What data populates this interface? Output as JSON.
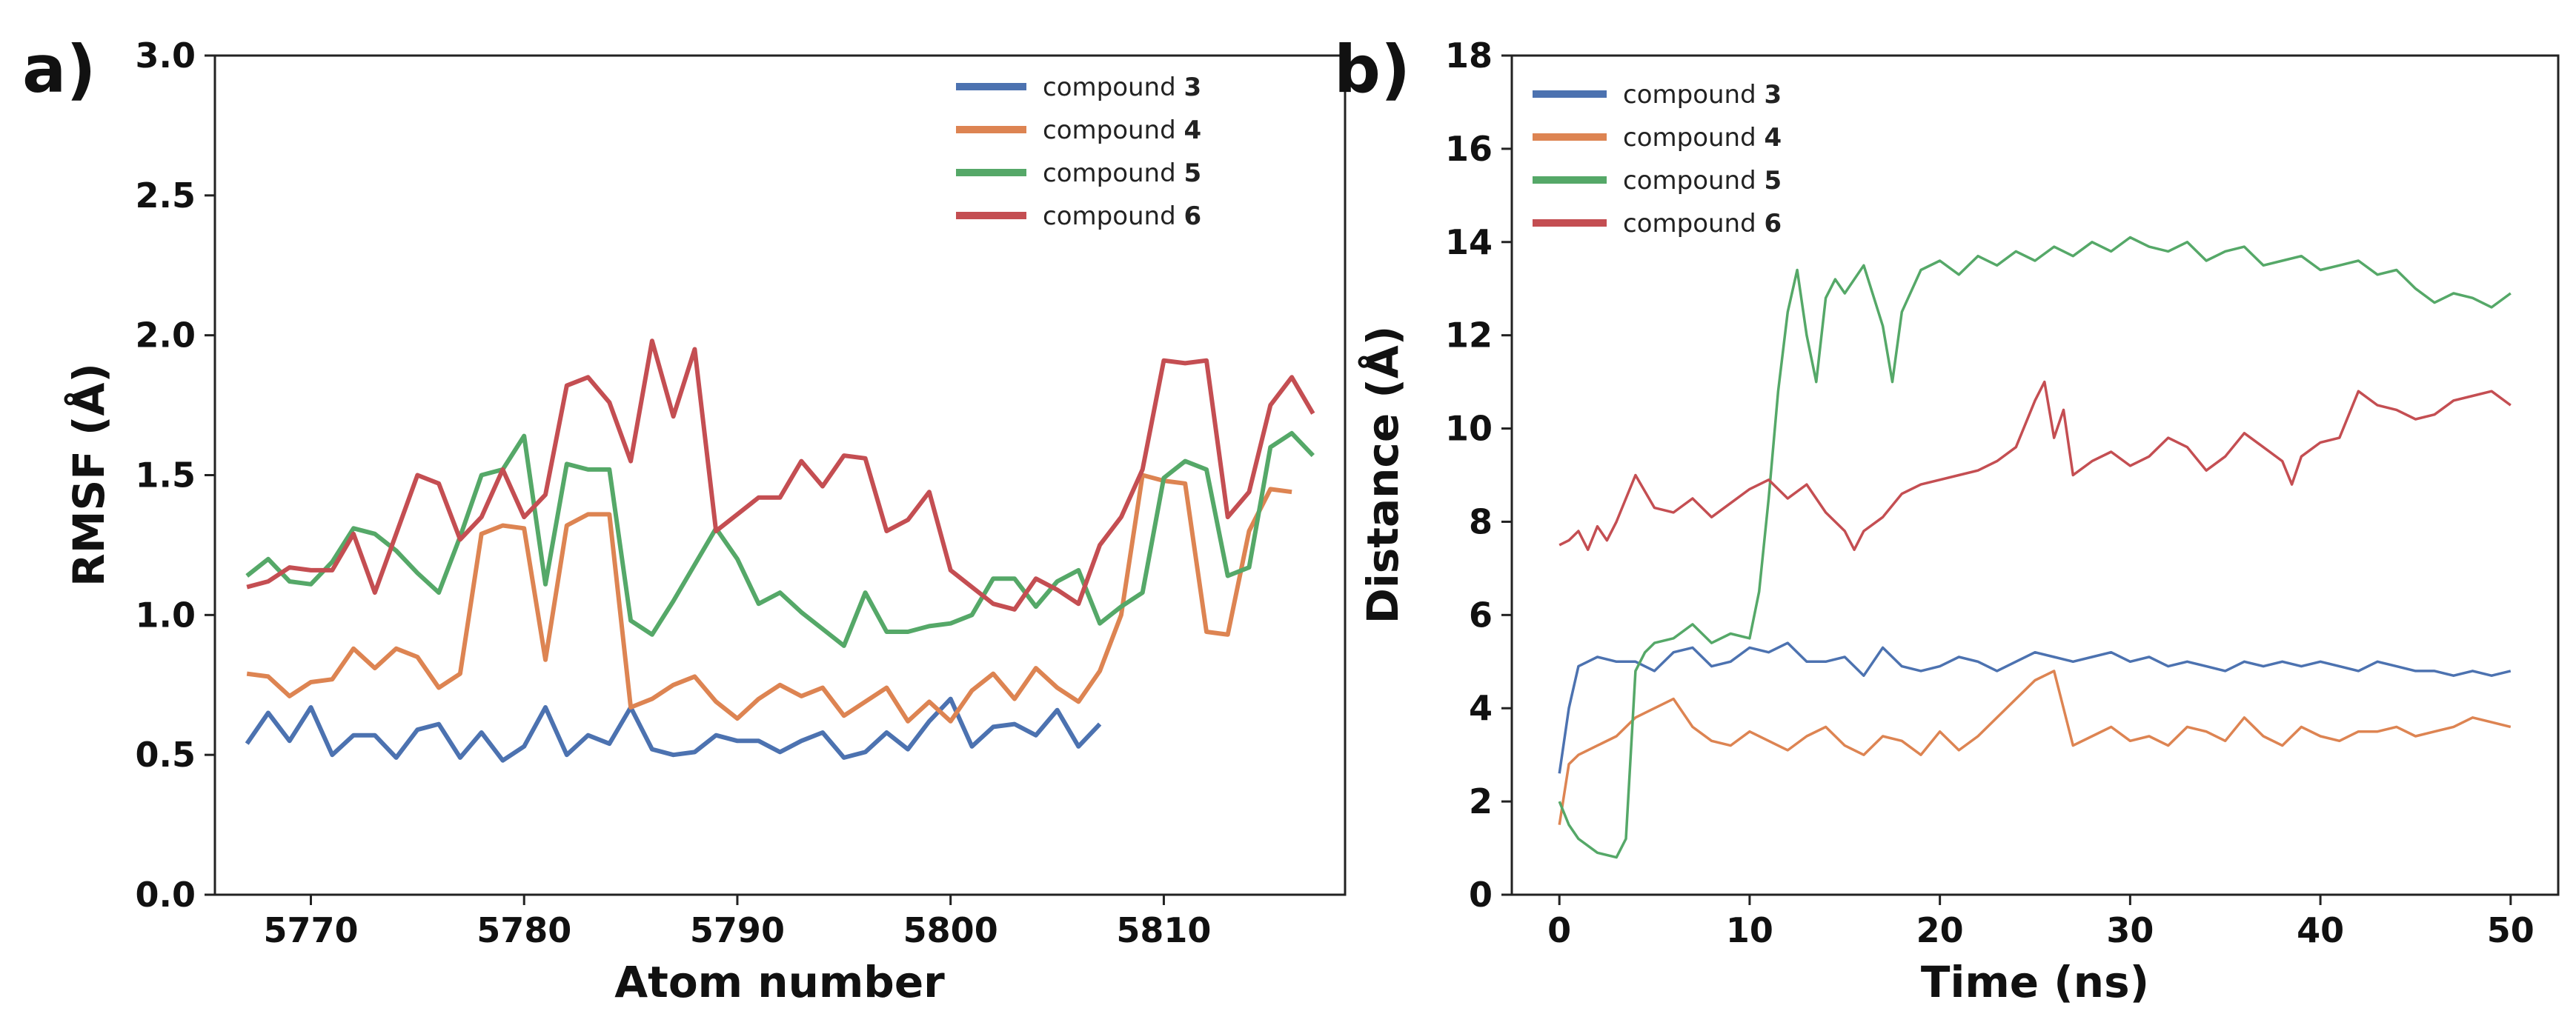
{
  "chart_data": [
    {
      "panel_label": "a)",
      "type": "line",
      "xlabel": "Atom number",
      "ylabel": "RMSF (Å)",
      "xlim": [
        5765.5,
        5818.5
      ],
      "ylim": [
        0.0,
        3.0
      ],
      "xticks": [
        "5770",
        "5780",
        "5790",
        "5800",
        "5810"
      ],
      "yticks": [
        "0.0",
        "0.5",
        "1.0",
        "1.5",
        "2.0",
        "2.5",
        "3.0"
      ],
      "legend_position": "top-right",
      "series": [
        {
          "name": "compound",
          "label_number": "3",
          "color": "#4c72b0",
          "x_start": 5767,
          "values": [
            0.54,
            0.65,
            0.55,
            0.67,
            0.5,
            0.57,
            0.57,
            0.49,
            0.59,
            0.61,
            0.49,
            0.58,
            0.48,
            0.53,
            0.67,
            0.5,
            0.57,
            0.54,
            0.67,
            0.52,
            0.5,
            0.51,
            0.57,
            0.55,
            0.55,
            0.51,
            0.55,
            0.58,
            0.49,
            0.51,
            0.58,
            0.52,
            0.62,
            0.7,
            0.53,
            0.6,
            0.61,
            0.57,
            0.66,
            0.53,
            0.61
          ]
        },
        {
          "name": "compound",
          "label_number": "4",
          "color": "#dd8452",
          "x_start": 5767,
          "values": [
            0.79,
            0.78,
            0.71,
            0.76,
            0.77,
            0.88,
            0.81,
            0.88,
            0.85,
            0.74,
            0.79,
            1.29,
            1.32,
            1.31,
            0.84,
            1.32,
            1.36,
            1.36,
            0.67,
            0.7,
            0.75,
            0.78,
            0.69,
            0.63,
            0.7,
            0.75,
            0.71,
            0.74,
            0.64,
            0.69,
            0.74,
            0.62,
            0.69,
            0.62,
            0.73,
            0.79,
            0.7,
            0.81,
            0.74,
            0.69,
            0.8,
            1.0,
            1.5,
            1.48,
            1.47,
            0.94,
            0.93,
            1.3,
            1.45,
            1.44
          ]
        },
        {
          "name": "compound",
          "label_number": "5",
          "color": "#55a868",
          "x_start": 5767,
          "values": [
            1.14,
            1.2,
            1.12,
            1.11,
            1.19,
            1.31,
            1.29,
            1.23,
            1.15,
            1.08,
            1.28,
            1.5,
            1.52,
            1.64,
            1.11,
            1.54,
            1.52,
            1.52,
            0.98,
            0.93,
            1.05,
            1.18,
            1.31,
            1.2,
            1.04,
            1.08,
            1.01,
            0.95,
            0.89,
            1.08,
            0.94,
            0.94,
            0.96,
            0.97,
            1.0,
            1.13,
            1.13,
            1.03,
            1.12,
            1.16,
            0.97,
            1.03,
            1.08,
            1.49,
            1.55,
            1.52,
            1.14,
            1.17,
            1.6,
            1.65,
            1.57
          ]
        },
        {
          "name": "compound",
          "label_number": "6",
          "color": "#c44e52",
          "x_start": 5767,
          "values": [
            1.1,
            1.12,
            1.17,
            1.16,
            1.16,
            1.29,
            1.08,
            1.29,
            1.5,
            1.47,
            1.27,
            1.35,
            1.52,
            1.35,
            1.43,
            1.82,
            1.85,
            1.76,
            1.55,
            1.98,
            1.71,
            1.95,
            1.3,
            1.36,
            1.42,
            1.42,
            1.55,
            1.46,
            1.57,
            1.56,
            1.3,
            1.34,
            1.44,
            1.16,
            1.1,
            1.04,
            1.02,
            1.13,
            1.09,
            1.04,
            1.25,
            1.35,
            1.52,
            1.91,
            1.9,
            1.91,
            1.35,
            1.44,
            1.75,
            1.85,
            1.72
          ]
        }
      ]
    },
    {
      "panel_label": "b)",
      "type": "line",
      "xlabel": "Time (ns)",
      "ylabel": "Distance (Å)",
      "xlim": [
        -2.5,
        52.5
      ],
      "ylim": [
        0,
        18
      ],
      "xticks": [
        "0",
        "10",
        "20",
        "30",
        "40",
        "50"
      ],
      "yticks": [
        "0",
        "2",
        "4",
        "6",
        "8",
        "10",
        "12",
        "14",
        "16",
        "18"
      ],
      "legend_position": "top-left",
      "series": [
        {
          "name": "compound",
          "label_number": "3",
          "color": "#4c72b0",
          "x": [
            0,
            0.5,
            1,
            2,
            3,
            4,
            5,
            6,
            7,
            8,
            9,
            10,
            11,
            12,
            13,
            14,
            15,
            16,
            17,
            18,
            19,
            20,
            21,
            22,
            23,
            24,
            25,
            26,
            27,
            28,
            29,
            30,
            31,
            32,
            33,
            34,
            35,
            36,
            37,
            38,
            39,
            40,
            41,
            42,
            43,
            44,
            45,
            46,
            47,
            48,
            49,
            50
          ],
          "y": [
            2.6,
            4.0,
            4.9,
            5.1,
            5.0,
            5.0,
            4.8,
            5.2,
            5.3,
            4.9,
            5.0,
            5.3,
            5.2,
            5.4,
            5.0,
            5.0,
            5.1,
            4.7,
            5.3,
            4.9,
            4.8,
            4.9,
            5.1,
            5.0,
            4.8,
            5.0,
            5.2,
            5.1,
            5.0,
            5.1,
            5.2,
            5.0,
            5.1,
            4.9,
            5.0,
            4.9,
            4.8,
            5.0,
            4.9,
            5.0,
            4.9,
            5.0,
            4.9,
            4.8,
            5.0,
            4.9,
            4.8,
            4.8,
            4.7,
            4.8,
            4.7,
            4.8
          ]
        },
        {
          "name": "compound",
          "label_number": "4",
          "color": "#dd8452",
          "x": [
            0,
            0.5,
            1,
            2,
            3,
            4,
            5,
            6,
            7,
            8,
            9,
            10,
            11,
            12,
            13,
            14,
            15,
            16,
            17,
            18,
            19,
            20,
            21,
            22,
            23,
            24,
            25,
            26,
            27,
            28,
            29,
            30,
            31,
            32,
            33,
            34,
            35,
            36,
            37,
            38,
            39,
            40,
            41,
            42,
            43,
            44,
            45,
            46,
            47,
            48,
            49,
            50
          ],
          "y": [
            1.5,
            2.8,
            3.0,
            3.2,
            3.4,
            3.8,
            4.0,
            4.2,
            3.6,
            3.3,
            3.2,
            3.5,
            3.3,
            3.1,
            3.4,
            3.6,
            3.2,
            3.0,
            3.4,
            3.3,
            3.0,
            3.5,
            3.1,
            3.4,
            3.8,
            4.2,
            4.6,
            4.8,
            3.2,
            3.4,
            3.6,
            3.3,
            3.4,
            3.2,
            3.6,
            3.5,
            3.3,
            3.8,
            3.4,
            3.2,
            3.6,
            3.4,
            3.3,
            3.5,
            3.5,
            3.6,
            3.4,
            3.5,
            3.6,
            3.8,
            3.7,
            3.6
          ]
        },
        {
          "name": "compound",
          "label_number": "5",
          "color": "#55a868",
          "x": [
            0,
            0.5,
            1,
            2,
            3,
            3.5,
            4,
            4.5,
            5,
            6,
            7,
            8,
            9,
            10,
            10.5,
            11,
            11.5,
            12,
            12.5,
            13,
            13.5,
            14,
            14.5,
            15,
            16,
            17,
            17.5,
            18,
            19,
            20,
            21,
            22,
            23,
            24,
            25,
            26,
            27,
            28,
            29,
            30,
            31,
            32,
            33,
            34,
            35,
            36,
            37,
            38,
            39,
            40,
            41,
            42,
            43,
            44,
            45,
            46,
            47,
            48,
            49,
            50
          ],
          "y": [
            2.0,
            1.5,
            1.2,
            0.9,
            0.8,
            1.2,
            4.8,
            5.2,
            5.4,
            5.5,
            5.8,
            5.4,
            5.6,
            5.5,
            6.5,
            8.5,
            10.8,
            12.5,
            13.4,
            12.0,
            11.0,
            12.8,
            13.2,
            12.9,
            13.5,
            12.2,
            11.0,
            12.5,
            13.4,
            13.6,
            13.3,
            13.7,
            13.5,
            13.8,
            13.6,
            13.9,
            13.7,
            14.0,
            13.8,
            14.1,
            13.9,
            13.8,
            14.0,
            13.6,
            13.8,
            13.9,
            13.5,
            13.6,
            13.7,
            13.4,
            13.5,
            13.6,
            13.3,
            13.4,
            13.0,
            12.7,
            12.9,
            12.8,
            12.6,
            12.9
          ]
        },
        {
          "name": "compound",
          "label_number": "6",
          "color": "#c44e52",
          "x": [
            0,
            0.5,
            1,
            1.5,
            2,
            2.5,
            3,
            3.5,
            4,
            5,
            6,
            7,
            8,
            9,
            10,
            11,
            12,
            13,
            14,
            15,
            15.5,
            16,
            17,
            18,
            19,
            20,
            21,
            22,
            23,
            24,
            25,
            25.5,
            26,
            26.5,
            27,
            28,
            29,
            30,
            31,
            32,
            33,
            34,
            35,
            36,
            37,
            38,
            38.5,
            39,
            40,
            41,
            42,
            43,
            44,
            45,
            46,
            47,
            48,
            49,
            50
          ],
          "y": [
            7.5,
            7.6,
            7.8,
            7.4,
            7.9,
            7.6,
            8.0,
            8.5,
            9.0,
            8.3,
            8.2,
            8.5,
            8.1,
            8.4,
            8.7,
            8.9,
            8.5,
            8.8,
            8.2,
            7.8,
            7.4,
            7.8,
            8.1,
            8.6,
            8.8,
            8.9,
            9.0,
            9.1,
            9.3,
            9.6,
            10.6,
            11.0,
            9.8,
            10.4,
            9.0,
            9.3,
            9.5,
            9.2,
            9.4,
            9.8,
            9.6,
            9.1,
            9.4,
            9.9,
            9.6,
            9.3,
            8.8,
            9.4,
            9.7,
            9.8,
            10.8,
            10.5,
            10.4,
            10.2,
            10.3,
            10.6,
            10.7,
            10.8,
            10.5
          ]
        }
      ]
    }
  ]
}
